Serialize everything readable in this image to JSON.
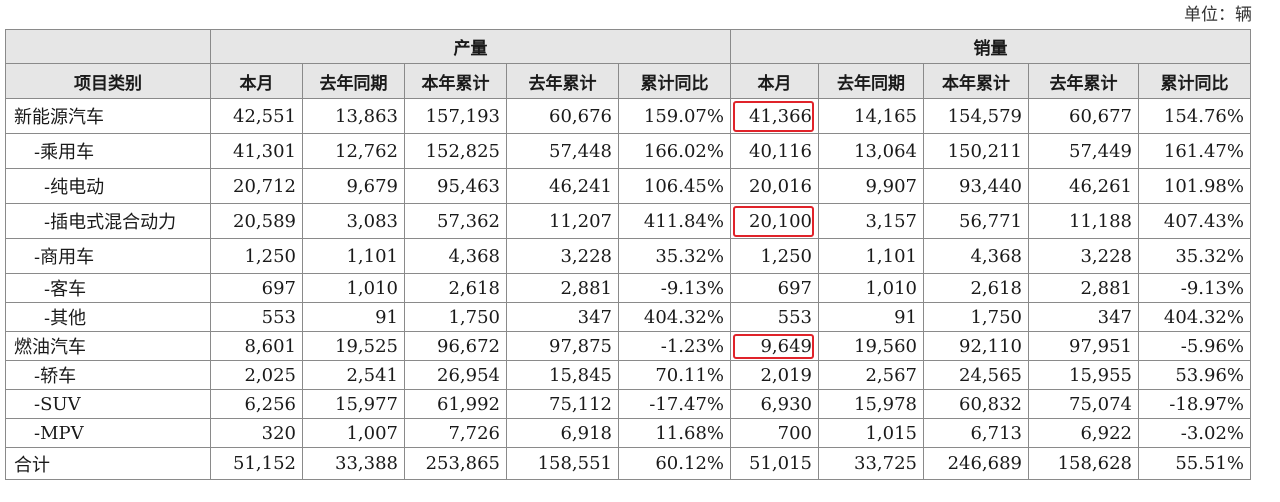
{
  "unit_label": "单位：辆",
  "groups": {
    "blank": "",
    "production": "产量",
    "sales": "销量"
  },
  "columns": [
    "项目类别",
    "本月",
    "去年同期",
    "本年累计",
    "去年累计",
    "累计同比",
    "本月",
    "去年同期",
    "本年累计",
    "去年累计",
    "累计同比"
  ],
  "rows": [
    {
      "level": 0,
      "cells": [
        "新能源汽车",
        "42,551",
        "13,863",
        "157,193",
        "60,676",
        "159.07%",
        "41,366",
        "14,165",
        "154,579",
        "60,677",
        "154.76%"
      ],
      "highlight_sales_month": true
    },
    {
      "level": 1,
      "cells": [
        "-乘用车",
        "41,301",
        "12,762",
        "152,825",
        "57,448",
        "166.02%",
        "40,116",
        "13,064",
        "150,211",
        "57,449",
        "161.47%"
      ],
      "highlight_sales_month": false
    },
    {
      "level": 2,
      "cells": [
        "-纯电动",
        "20,712",
        "9,679",
        "95,463",
        "46,241",
        "106.45%",
        "20,016",
        "9,907",
        "93,440",
        "46,261",
        "101.98%"
      ],
      "highlight_sales_month": false
    },
    {
      "level": 2,
      "cells": [
        "-插电式混合动力",
        "20,589",
        "3,083",
        "57,362",
        "11,207",
        "411.84%",
        "20,100",
        "3,157",
        "56,771",
        "11,188",
        "407.43%"
      ],
      "highlight_sales_month": true
    },
    {
      "level": 1,
      "cells": [
        "-商用车",
        "1,250",
        "1,101",
        "4,368",
        "3,228",
        "35.32%",
        "1,250",
        "1,101",
        "4,368",
        "3,228",
        "35.32%"
      ],
      "highlight_sales_month": false
    },
    {
      "level": 2,
      "cells": [
        "-客车",
        "697",
        "1,010",
        "2,618",
        "2,881",
        "-9.13%",
        "697",
        "1,010",
        "2,618",
        "2,881",
        "-9.13%"
      ],
      "highlight_sales_month": false
    },
    {
      "level": 2,
      "cells": [
        "-其他",
        "553",
        "91",
        "1,750",
        "347",
        "404.32%",
        "553",
        "91",
        "1,750",
        "347",
        "404.32%"
      ],
      "highlight_sales_month": false
    },
    {
      "level": 0,
      "cells": [
        "燃油汽车",
        "8,601",
        "19,525",
        "96,672",
        "97,875",
        "-1.23%",
        "9,649",
        "19,560",
        "92,110",
        "97,951",
        "-5.96%"
      ],
      "highlight_sales_month": true
    },
    {
      "level": 1,
      "cells": [
        "-轿车",
        "2,025",
        "2,541",
        "26,954",
        "15,845",
        "70.11%",
        "2,019",
        "2,567",
        "24,565",
        "15,955",
        "53.96%"
      ],
      "highlight_sales_month": false
    },
    {
      "level": 1,
      "cells": [
        "-SUV",
        "6,256",
        "15,977",
        "61,992",
        "75,112",
        "-17.47%",
        "6,930",
        "15,978",
        "60,832",
        "75,074",
        "-18.97%"
      ],
      "highlight_sales_month": false
    },
    {
      "level": 1,
      "cells": [
        "-MPV",
        "320",
        "1,007",
        "7,726",
        "6,918",
        "11.68%",
        "700",
        "1,015",
        "6,713",
        "6,922",
        "-3.02%"
      ],
      "highlight_sales_month": false
    },
    {
      "level": 0,
      "cells": [
        "合计",
        "51,152",
        "33,388",
        "253,865",
        "158,551",
        "60.12%",
        "51,015",
        "33,725",
        "246,689",
        "158,628",
        "55.51%"
      ],
      "highlight_sales_month": false
    }
  ],
  "row_heights": [
    35,
    35,
    35,
    35,
    35,
    29,
    29,
    29,
    29,
    29,
    29,
    32
  ],
  "colors": {
    "highlight_box": "#e0232a",
    "header_bg": "#e6e6e6",
    "border": "#8a8a8a"
  }
}
